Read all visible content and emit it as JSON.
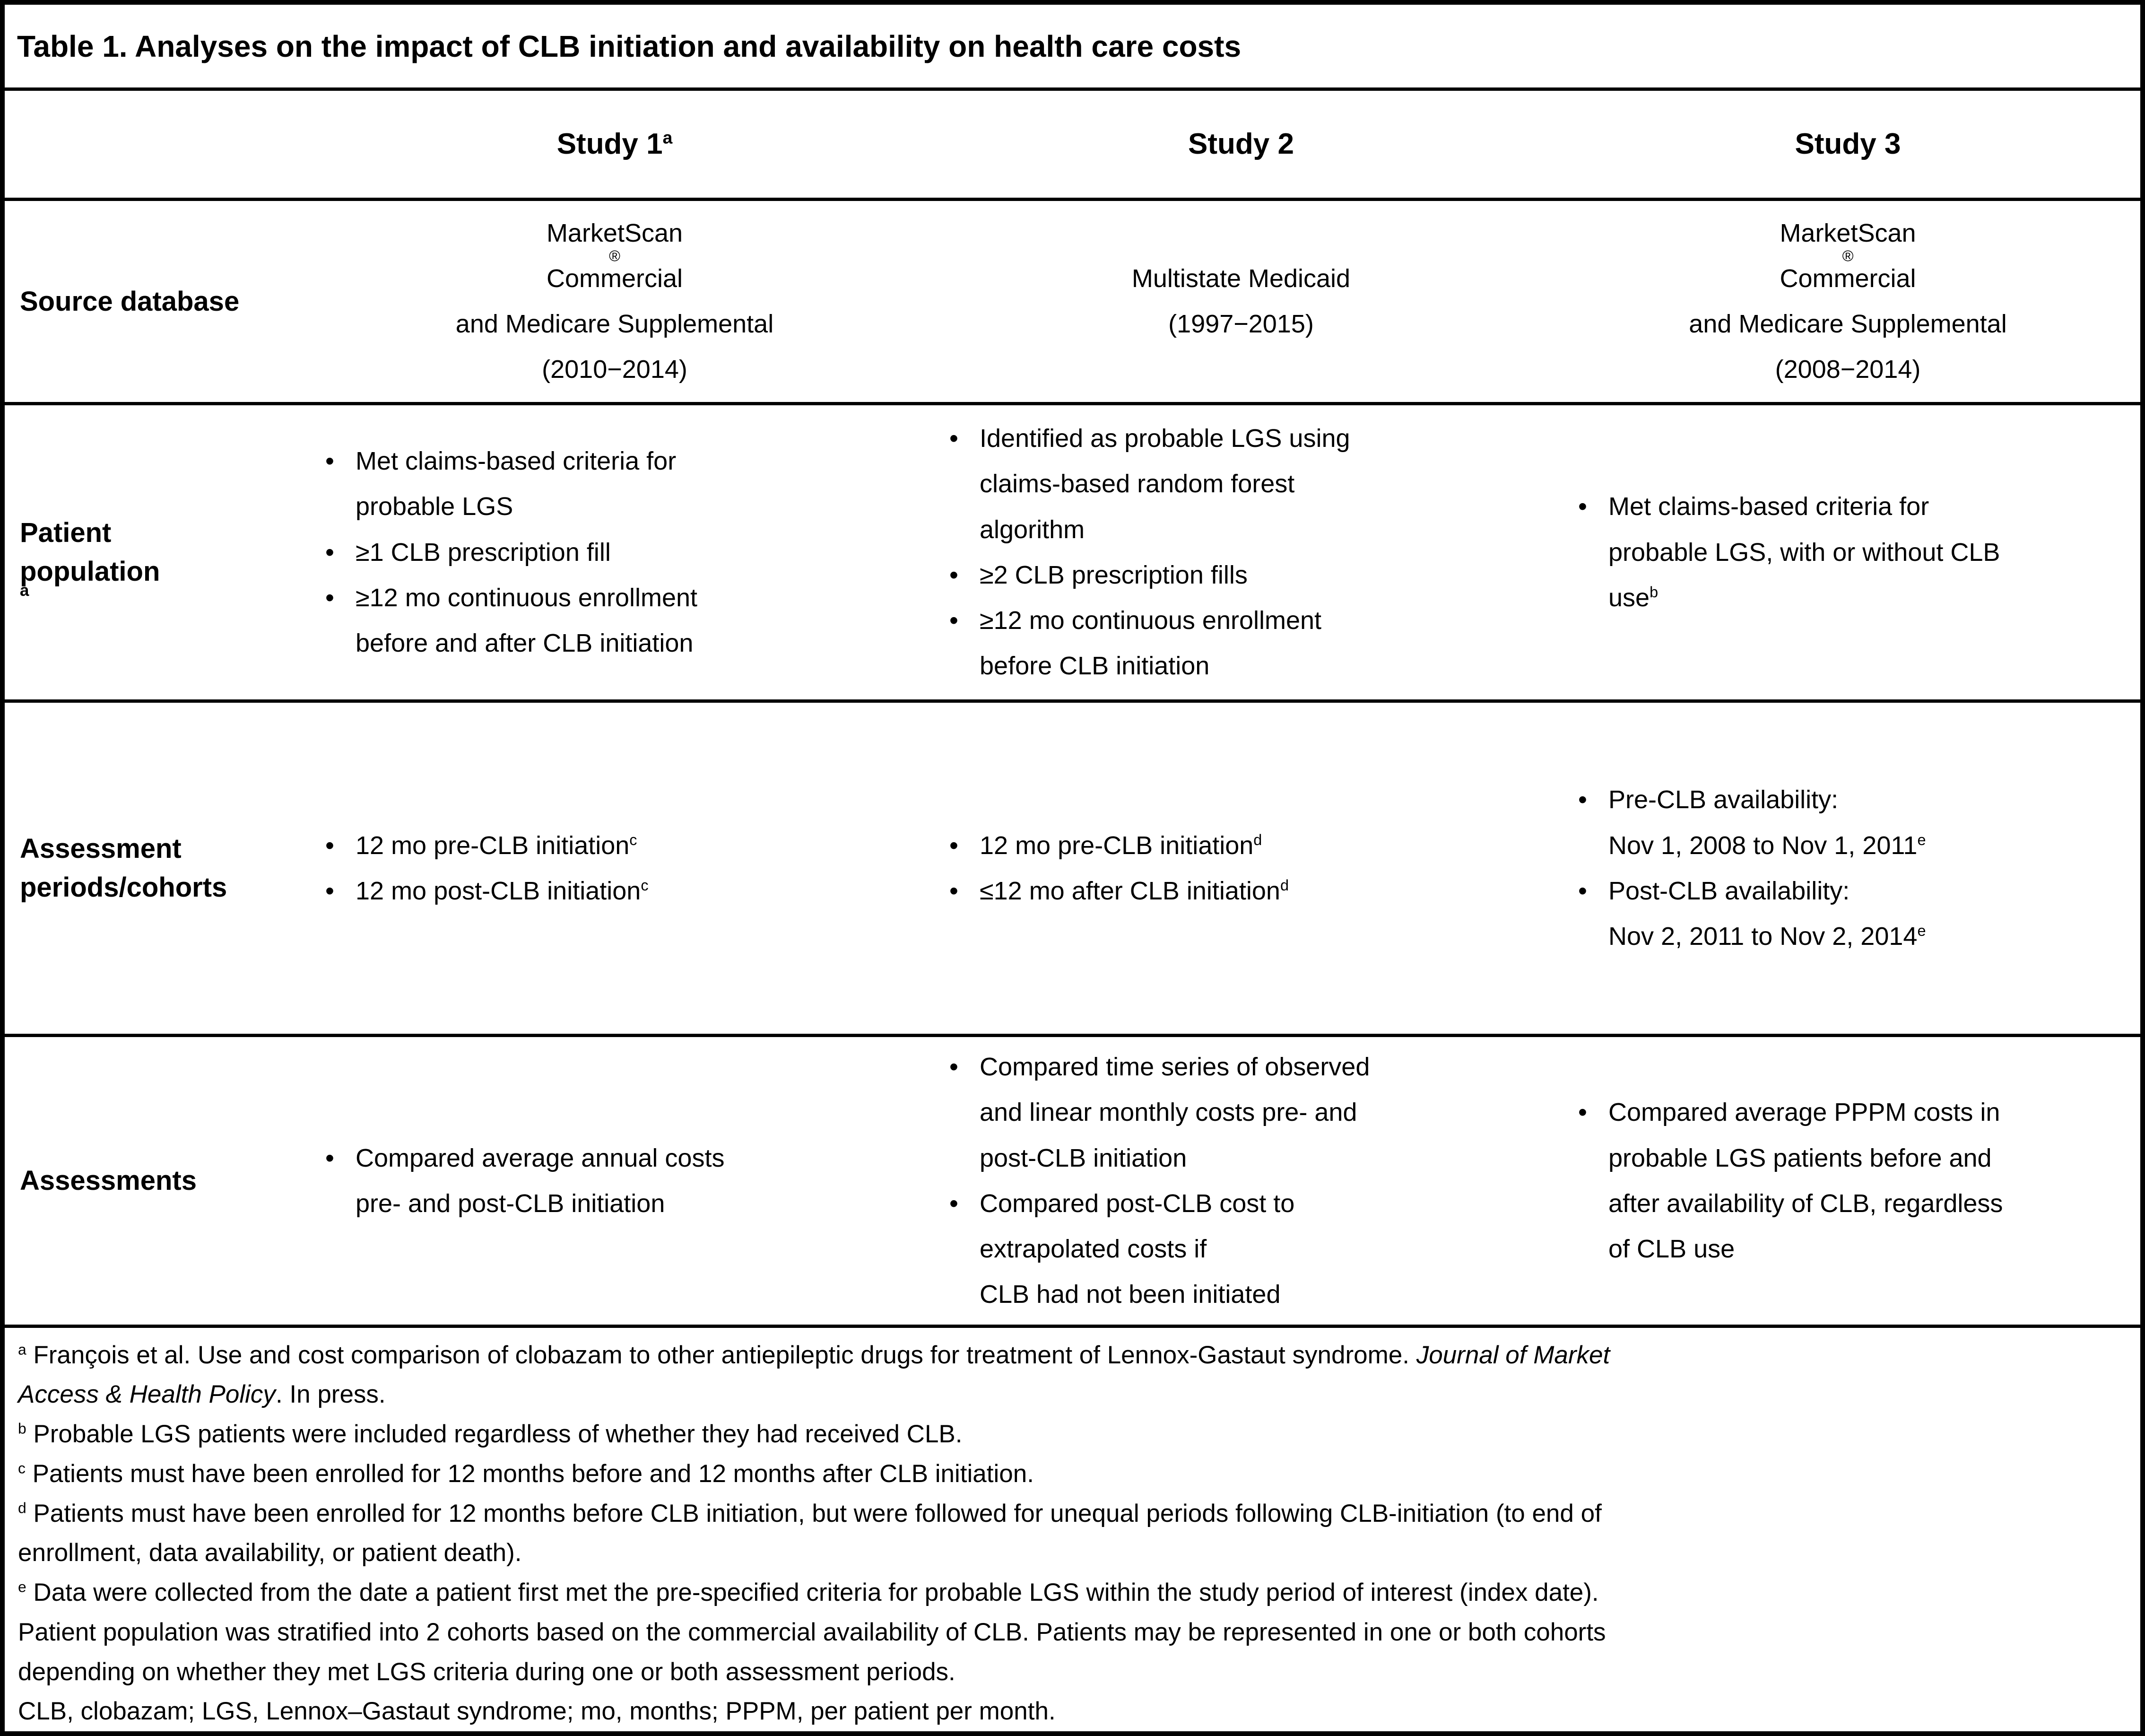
{
  "colors": {
    "text": "#000000",
    "background": "#ffffff",
    "border": "#000000"
  },
  "bullet_glyph": "•",
  "title": "Table 1. Analyses on the impact of CLB initiation and availability on health care costs",
  "header": {
    "row_label": "",
    "studies": [
      "Study 1^a^",
      "Study 2",
      "Study 3"
    ]
  },
  "rows": [
    {
      "label_lines": [
        "Source database"
      ],
      "type": "center",
      "cells": [
        {
          "lines": [
            "MarketScan^®^ Commercial",
            "and Medicare Supplemental",
            "(2010−2014)"
          ]
        },
        {
          "lines": [
            "Multistate Medicaid",
            "(1997−2015)"
          ]
        },
        {
          "lines": [
            "MarketScan^®^ Commercial",
            "and Medicare Supplemental",
            "(2008−2014)"
          ]
        }
      ]
    },
    {
      "label_lines": [
        "Patient",
        "population^a^"
      ],
      "type": "bullets",
      "cells": [
        {
          "bullets": [
            [
              "Met claims-based criteria for",
              "probable LGS"
            ],
            [
              "≥1 CLB prescription fill"
            ],
            [
              "≥12 mo continuous enrollment",
              "before and after CLB initiation"
            ]
          ]
        },
        {
          "bullets": [
            [
              "Identified as probable LGS using",
              "claims-based random forest",
              "algorithm"
            ],
            [
              "≥2 CLB prescription fills"
            ],
            [
              "≥12 mo continuous enrollment",
              "before CLB initiation"
            ]
          ]
        },
        {
          "bullets": [
            [
              "Met claims-based criteria for",
              "probable LGS, with or without CLB",
              "use^b^"
            ]
          ]
        }
      ]
    },
    {
      "label_lines": [
        "Assessment",
        "periods/cohorts"
      ],
      "type": "bullets",
      "cells": [
        {
          "bullets": [
            [
              "12 mo pre-CLB initiation^c^"
            ],
            [
              "12 mo post-CLB initiation^c^"
            ]
          ]
        },
        {
          "bullets": [
            [
              "12 mo pre-CLB initiation^d^"
            ],
            [
              "≤12 mo after CLB initiation^d^"
            ]
          ]
        },
        {
          "bullets": [
            [
              "Pre-CLB availability:",
              "Nov 1, 2008 to Nov 1, 2011^e^"
            ],
            [
              "Post-CLB availability:",
              "Nov 2, 2011 to Nov 2, 2014^e^"
            ]
          ]
        }
      ]
    },
    {
      "label_lines": [
        "Assessments"
      ],
      "type": "bullets",
      "cells": [
        {
          "bullets": [
            [
              "Compared average annual costs",
              "pre- and post-CLB initiation"
            ]
          ]
        },
        {
          "bullets": [
            [
              "Compared time series of observed",
              "and linear monthly costs pre- and",
              "post-CLB initiation"
            ],
            [
              "Compared post-CLB cost to",
              "extrapolated costs if",
              "CLB had not been initiated"
            ]
          ]
        },
        {
          "bullets": [
            [
              "Compared average PPPM costs in",
              "probable LGS patients before and",
              "after availability of CLB, regardless",
              "of CLB use"
            ]
          ]
        }
      ]
    }
  ],
  "footnotes": [
    {
      "marker": "a",
      "lines": [
        "François et al. Use and cost comparison of clobazam to other antiepileptic drugs for treatment of Lennox-Gastaut syndrome. *Journal of Market*",
        "*Access & Health Policy*. In press."
      ]
    },
    {
      "marker": "b",
      "lines": [
        "Probable LGS patients were included regardless of whether they had received CLB."
      ]
    },
    {
      "marker": "c",
      "lines": [
        "Patients must have been enrolled for 12 months before and 12 months after CLB initiation."
      ]
    },
    {
      "marker": "d",
      "lines": [
        "Patients must have been enrolled for 12 months before CLB initiation, but were followed for unequal periods following CLB-initiation (to end of",
        "enrollment, data availability, or patient death)."
      ]
    },
    {
      "marker": "e",
      "lines": [
        "Data were collected from the date a patient first met the pre-specified criteria for probable LGS within the study period of interest (index date).",
        "Patient population was stratified into 2 cohorts based on the commercial availability of CLB. Patients may be represented in one or both cohorts",
        "depending on whether they met LGS criteria during one or both assessment periods."
      ]
    }
  ],
  "abbreviations": "CLB, clobazam; LGS, Lennox–Gastaut syndrome; mo, months; PPPM, per patient per month."
}
